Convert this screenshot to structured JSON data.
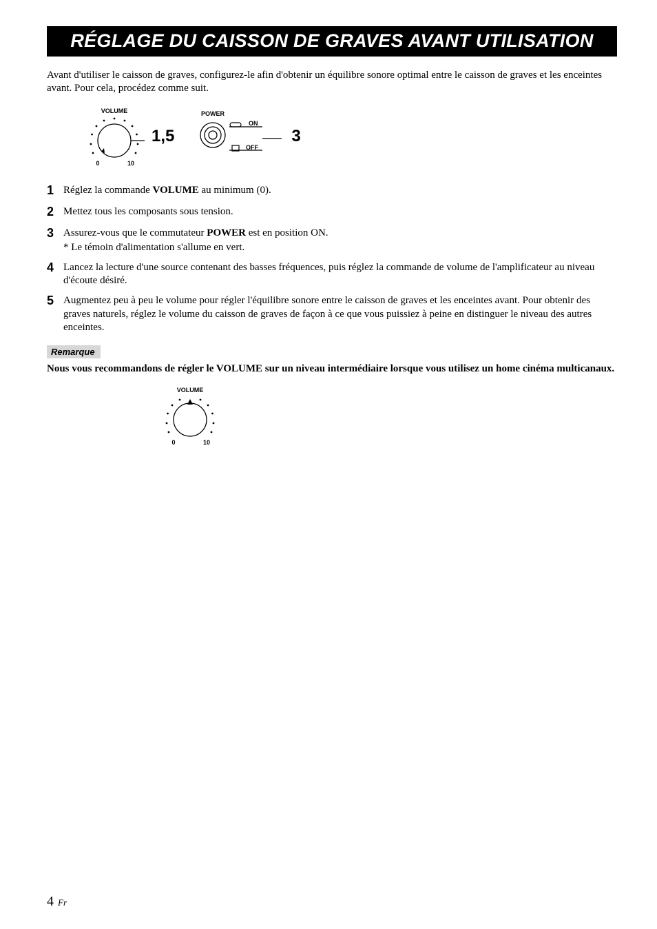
{
  "title": "RÉGLAGE DU CAISSON DE GRAVES AVANT UTILISATION",
  "intro": "Avant d'utiliser le caisson de graves, configurez-le afin d'obtenir un équilibre sonore optimal entre le caisson de graves et les enceintes avant. Pour cela, procédez comme suit.",
  "diagram": {
    "volume_caption": "VOLUME",
    "volume_min": "0",
    "volume_max": "10",
    "label_15": "1,5",
    "power_caption": "POWER",
    "power_on": "ON",
    "power_off": "OFF",
    "label_3": "3"
  },
  "steps": [
    {
      "num": "1",
      "html": "Réglez la commande <b>VOLUME</b> au minimum (0)."
    },
    {
      "num": "2",
      "html": "Mettez tous les composants sous tension."
    },
    {
      "num": "3",
      "html": "Assurez-vous que le commutateur <b>POWER</b> est en position ON.",
      "sub": "*  Le témoin d'alimentation s'allume en vert."
    },
    {
      "num": "4",
      "html": "Lancez la lecture d'une source contenant des basses fréquences, puis réglez la commande de volume de l'amplificateur au niveau d'écoute désiré."
    },
    {
      "num": "5",
      "html": "Augmentez peu à peu le volume pour régler l'équilibre sonore entre le caisson de graves et les enceintes avant. Pour obtenir des graves naturels, réglez le volume du caisson de graves de façon à ce que vous puissiez à peine en distinguer le niveau des autres enceintes."
    }
  ],
  "remark": {
    "badge": "Remarque",
    "text": "Nous vous recommandons de régler le VOLUME sur un niveau intermédiaire lorsque vous utilisez un home cinéma multicanaux.",
    "volume_caption": "VOLUME",
    "volume_min": "0",
    "volume_max": "10"
  },
  "page_number": "4",
  "page_suffix": "Fr",
  "colors": {
    "title_bg": "#000000",
    "title_fg": "#ffffff",
    "badge_bg": "#d7d7d7",
    "text": "#000000",
    "bg": "#ffffff"
  }
}
